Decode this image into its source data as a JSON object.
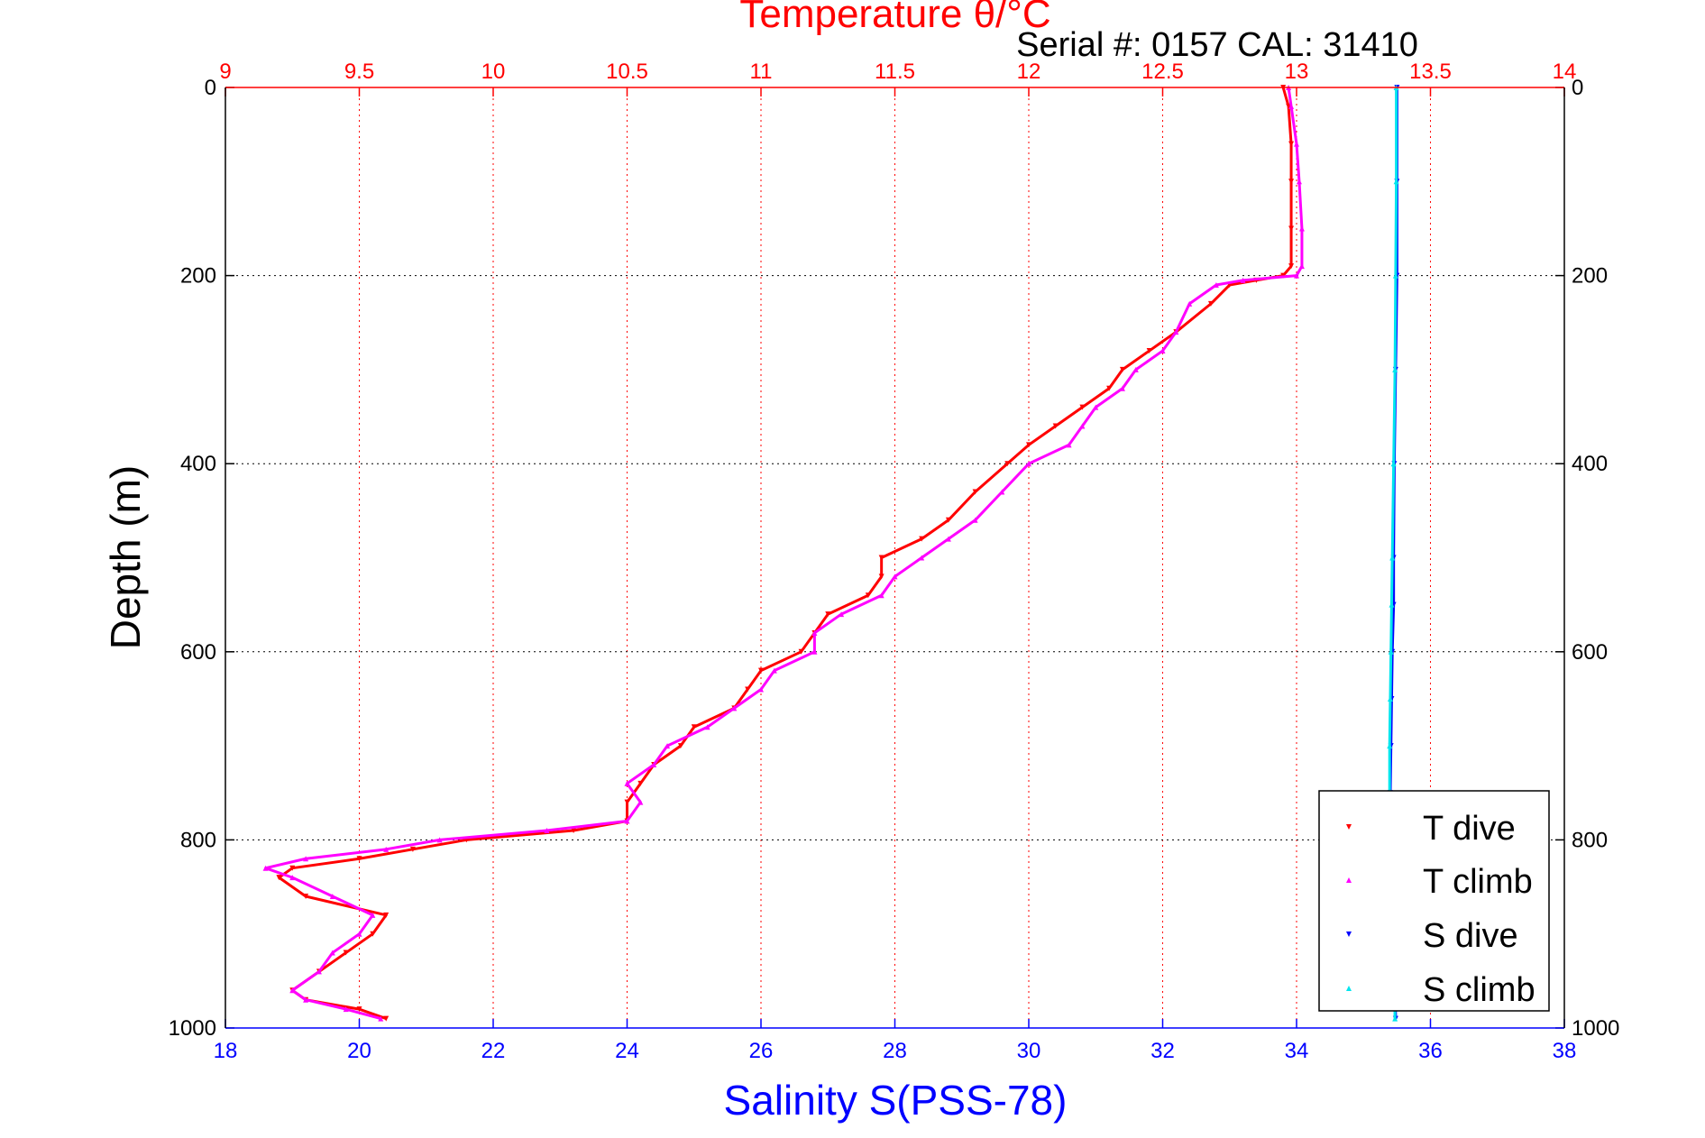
{
  "chart_data": {
    "type": "scatter",
    "title": "Temperature θ/°C",
    "subtitle": "Serial #: 0157  CAL: 31410",
    "x_top_label": "Temperature θ/°C",
    "x_bottom_label": "Salinity S(PSS-78)",
    "ylabel": "Depth (m)",
    "x_top_range": [
      9,
      14
    ],
    "x_bottom_range": [
      18,
      38
    ],
    "y_range": [
      0,
      1000
    ],
    "y_reversed": true,
    "grid": true,
    "legend_position": "bottom-right",
    "top_ticks": [
      "9",
      "9.5",
      "10",
      "10.5",
      "11",
      "11.5",
      "12",
      "12.5",
      "13",
      "13.5",
      "14"
    ],
    "bottom_ticks": [
      "18",
      "20",
      "22",
      "24",
      "26",
      "28",
      "30",
      "32",
      "34",
      "36",
      "38"
    ],
    "y_ticks": [
      "0",
      "200",
      "400",
      "600",
      "800",
      "1000"
    ],
    "colors": {
      "top_axis": "#ff0000",
      "bottom_axis": "#0000ff",
      "grid": "#000000"
    },
    "series": [
      {
        "name": "T dive",
        "axis": "top",
        "marker": "triangle-down",
        "color": "#ff0000",
        "depth": [
          0,
          20,
          60,
          100,
          150,
          190,
          200,
          205,
          210,
          230,
          260,
          280,
          300,
          320,
          340,
          360,
          380,
          400,
          430,
          460,
          480,
          500,
          520,
          540,
          560,
          580,
          600,
          620,
          640,
          660,
          680,
          700,
          720,
          740,
          760,
          780,
          790,
          800,
          810,
          820,
          830,
          840,
          860,
          880,
          900,
          920,
          940,
          960,
          970,
          980,
          990
        ],
        "temp": [
          12.95,
          12.97,
          12.98,
          12.98,
          12.98,
          12.98,
          12.95,
          12.85,
          12.75,
          12.68,
          12.55,
          12.45,
          12.35,
          12.3,
          12.2,
          12.1,
          12.0,
          11.92,
          11.8,
          11.7,
          11.6,
          11.45,
          11.45,
          11.4,
          11.25,
          11.2,
          11.15,
          11.0,
          10.95,
          10.9,
          10.75,
          10.7,
          10.6,
          10.55,
          10.5,
          10.5,
          10.3,
          9.9,
          9.7,
          9.5,
          9.25,
          9.2,
          9.3,
          9.6,
          9.55,
          9.45,
          9.35,
          9.25,
          9.3,
          9.5,
          9.6
        ]
      },
      {
        "name": "T climb",
        "axis": "top",
        "marker": "triangle-up",
        "color": "#ff00ff",
        "depth": [
          0,
          20,
          60,
          100,
          150,
          190,
          200,
          205,
          210,
          230,
          260,
          280,
          300,
          320,
          340,
          360,
          380,
          400,
          430,
          460,
          480,
          500,
          520,
          540,
          560,
          580,
          600,
          620,
          640,
          660,
          680,
          700,
          720,
          740,
          760,
          780,
          790,
          800,
          810,
          820,
          830,
          840,
          860,
          880,
          900,
          920,
          940,
          960,
          970,
          980,
          990
        ],
        "temp": [
          12.97,
          12.98,
          13.0,
          13.01,
          13.02,
          13.02,
          13.0,
          12.8,
          12.7,
          12.6,
          12.55,
          12.5,
          12.4,
          12.35,
          12.25,
          12.2,
          12.15,
          12.0,
          11.9,
          11.8,
          11.7,
          11.6,
          11.5,
          11.45,
          11.3,
          11.2,
          11.2,
          11.05,
          11.0,
          10.9,
          10.8,
          10.65,
          10.6,
          10.5,
          10.55,
          10.5,
          10.2,
          9.8,
          9.6,
          9.3,
          9.15,
          9.25,
          9.4,
          9.55,
          9.5,
          9.4,
          9.35,
          9.25,
          9.3,
          9.45,
          9.58
        ]
      },
      {
        "name": "S dive",
        "axis": "bottom",
        "marker": "triangle-down",
        "color": "#0000ff",
        "depth": [
          0,
          100,
          200,
          300,
          400,
          500,
          550,
          600,
          650,
          700,
          750,
          800,
          850,
          900,
          950,
          990
        ],
        "sal": [
          35.5,
          35.5,
          35.5,
          35.48,
          35.46,
          35.45,
          35.45,
          35.43,
          35.42,
          35.41,
          35.4,
          35.41,
          35.43,
          35.45,
          35.47,
          35.48
        ]
      },
      {
        "name": "S climb",
        "axis": "bottom",
        "marker": "triangle-up",
        "color": "#00e5ee",
        "depth": [
          0,
          100,
          200,
          300,
          400,
          500,
          550,
          600,
          650,
          700,
          750,
          800,
          850,
          900,
          950,
          990
        ],
        "sal": [
          35.49,
          35.49,
          35.48,
          35.47,
          35.45,
          35.43,
          35.42,
          35.41,
          35.4,
          35.39,
          35.39,
          35.4,
          35.42,
          35.44,
          35.46,
          35.47
        ]
      }
    ]
  }
}
